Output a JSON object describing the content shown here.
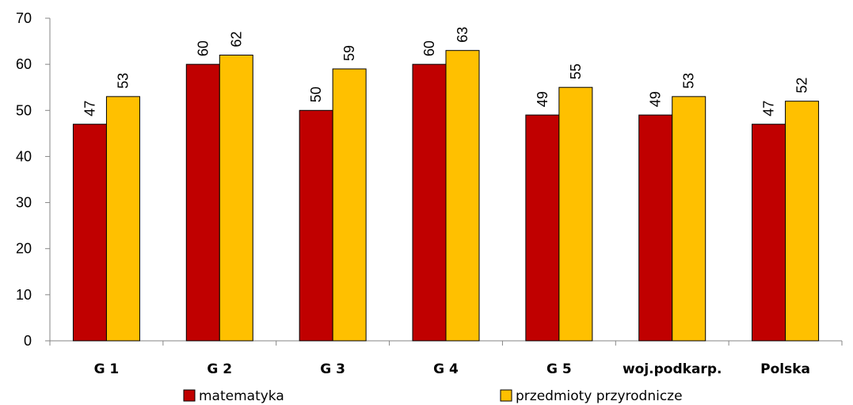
{
  "colors": {
    "series_1": "#c00000",
    "series_2": "#ffc000",
    "bar_stroke": "#000000",
    "axis": "#868686"
  },
  "chart_data": {
    "type": "bar",
    "title": "",
    "xlabel": "",
    "ylabel": "",
    "categories": [
      "G 1",
      "G 2",
      "G 3",
      "G 4",
      "G 5",
      "woj.podkarp.",
      "Polska"
    ],
    "series": [
      {
        "name": "matematyka",
        "values": [
          47,
          60,
          50,
          60,
          49,
          49,
          47
        ]
      },
      {
        "name": "przedmioty przyrodnicze",
        "values": [
          53,
          62,
          59,
          63,
          55,
          53,
          52
        ]
      }
    ],
    "ylim": [
      0,
      70
    ],
    "yticks": [
      0,
      10,
      20,
      30,
      40,
      50,
      60,
      70
    ],
    "grid": false,
    "data_labels": true,
    "data_label_orientation": "vertical",
    "legend_position": "bottom"
  }
}
